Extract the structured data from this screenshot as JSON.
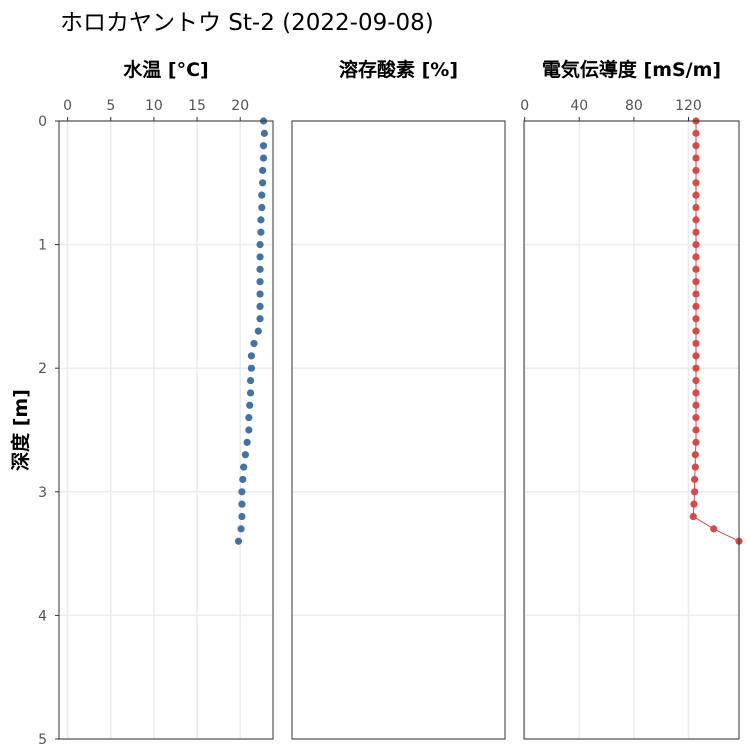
{
  "title": "ホロカヤントウ St-2 (2022-09-08)",
  "chart_data": {
    "type": "scatter",
    "y_axis": {
      "label": "深度 [m]",
      "range": [
        0,
        5
      ],
      "reversed": true,
      "ticks": [
        0,
        1,
        2,
        3,
        4,
        5
      ]
    },
    "grid": true,
    "panels": [
      {
        "title": "水温 [°C]",
        "xlim": [
          -1,
          23.8
        ],
        "ticks": [
          0,
          5,
          10,
          15,
          20
        ],
        "color": "#4672a3",
        "line": false,
        "points": [
          {
            "depth": 0.0,
            "value": 22.7
          },
          {
            "depth": 0.1,
            "value": 22.8
          },
          {
            "depth": 0.2,
            "value": 22.7
          },
          {
            "depth": 0.3,
            "value": 22.7
          },
          {
            "depth": 0.4,
            "value": 22.6
          },
          {
            "depth": 0.5,
            "value": 22.6
          },
          {
            "depth": 0.6,
            "value": 22.5
          },
          {
            "depth": 0.7,
            "value": 22.5
          },
          {
            "depth": 0.8,
            "value": 22.4
          },
          {
            "depth": 0.9,
            "value": 22.4
          },
          {
            "depth": 1.0,
            "value": 22.3
          },
          {
            "depth": 1.1,
            "value": 22.3
          },
          {
            "depth": 1.2,
            "value": 22.3
          },
          {
            "depth": 1.3,
            "value": 22.3
          },
          {
            "depth": 1.4,
            "value": 22.3
          },
          {
            "depth": 1.5,
            "value": 22.3
          },
          {
            "depth": 1.6,
            "value": 22.3
          },
          {
            "depth": 1.7,
            "value": 22.1
          },
          {
            "depth": 1.8,
            "value": 21.6
          },
          {
            "depth": 1.9,
            "value": 21.3
          },
          {
            "depth": 2.0,
            "value": 21.3
          },
          {
            "depth": 2.1,
            "value": 21.2
          },
          {
            "depth": 2.2,
            "value": 21.2
          },
          {
            "depth": 2.3,
            "value": 21.1
          },
          {
            "depth": 2.4,
            "value": 21.0
          },
          {
            "depth": 2.5,
            "value": 21.0
          },
          {
            "depth": 2.6,
            "value": 20.8
          },
          {
            "depth": 2.7,
            "value": 20.6
          },
          {
            "depth": 2.8,
            "value": 20.4
          },
          {
            "depth": 2.9,
            "value": 20.3
          },
          {
            "depth": 3.0,
            "value": 20.2
          },
          {
            "depth": 3.1,
            "value": 20.2
          },
          {
            "depth": 3.2,
            "value": 20.2
          },
          {
            "depth": 3.3,
            "value": 20.1
          },
          {
            "depth": 3.4,
            "value": 19.8
          }
        ]
      },
      {
        "title": "溶存酸素 [%]",
        "xlim": [
          0,
          1
        ],
        "ticks": [],
        "color": "#333333",
        "line": false,
        "points": []
      },
      {
        "title": "電気伝導度 [mS/m]",
        "xlim": [
          -0.5,
          157
        ],
        "ticks": [
          0,
          40,
          80,
          120
        ],
        "color": "#d64a4a",
        "line": true,
        "points": [
          {
            "depth": 0.0,
            "value": 125.5
          },
          {
            "depth": 0.1,
            "value": 125.5
          },
          {
            "depth": 0.2,
            "value": 125.5
          },
          {
            "depth": 0.3,
            "value": 125.5
          },
          {
            "depth": 0.4,
            "value": 125.5
          },
          {
            "depth": 0.5,
            "value": 125.5
          },
          {
            "depth": 0.6,
            "value": 125.5
          },
          {
            "depth": 0.7,
            "value": 125.5
          },
          {
            "depth": 0.8,
            "value": 125.5
          },
          {
            "depth": 0.9,
            "value": 125.5
          },
          {
            "depth": 1.0,
            "value": 125.5
          },
          {
            "depth": 1.1,
            "value": 125.5
          },
          {
            "depth": 1.2,
            "value": 125.5
          },
          {
            "depth": 1.3,
            "value": 125.5
          },
          {
            "depth": 1.4,
            "value": 125.5
          },
          {
            "depth": 1.5,
            "value": 125.5
          },
          {
            "depth": 1.6,
            "value": 125.5
          },
          {
            "depth": 1.7,
            "value": 125.5
          },
          {
            "depth": 1.8,
            "value": 125.5
          },
          {
            "depth": 1.9,
            "value": 125.5
          },
          {
            "depth": 2.0,
            "value": 125.5
          },
          {
            "depth": 2.1,
            "value": 125.5
          },
          {
            "depth": 2.2,
            "value": 125.5
          },
          {
            "depth": 2.3,
            "value": 125.5
          },
          {
            "depth": 2.4,
            "value": 125.5
          },
          {
            "depth": 2.5,
            "value": 125.5
          },
          {
            "depth": 2.6,
            "value": 125.5
          },
          {
            "depth": 2.7,
            "value": 125.0
          },
          {
            "depth": 2.8,
            "value": 125.0
          },
          {
            "depth": 2.9,
            "value": 124.5
          },
          {
            "depth": 3.0,
            "value": 124.5
          },
          {
            "depth": 3.1,
            "value": 124.0
          },
          {
            "depth": 3.2,
            "value": 123.5
          },
          {
            "depth": 3.3,
            "value": 138.5
          },
          {
            "depth": 3.4,
            "value": 157.0
          }
        ]
      }
    ]
  }
}
